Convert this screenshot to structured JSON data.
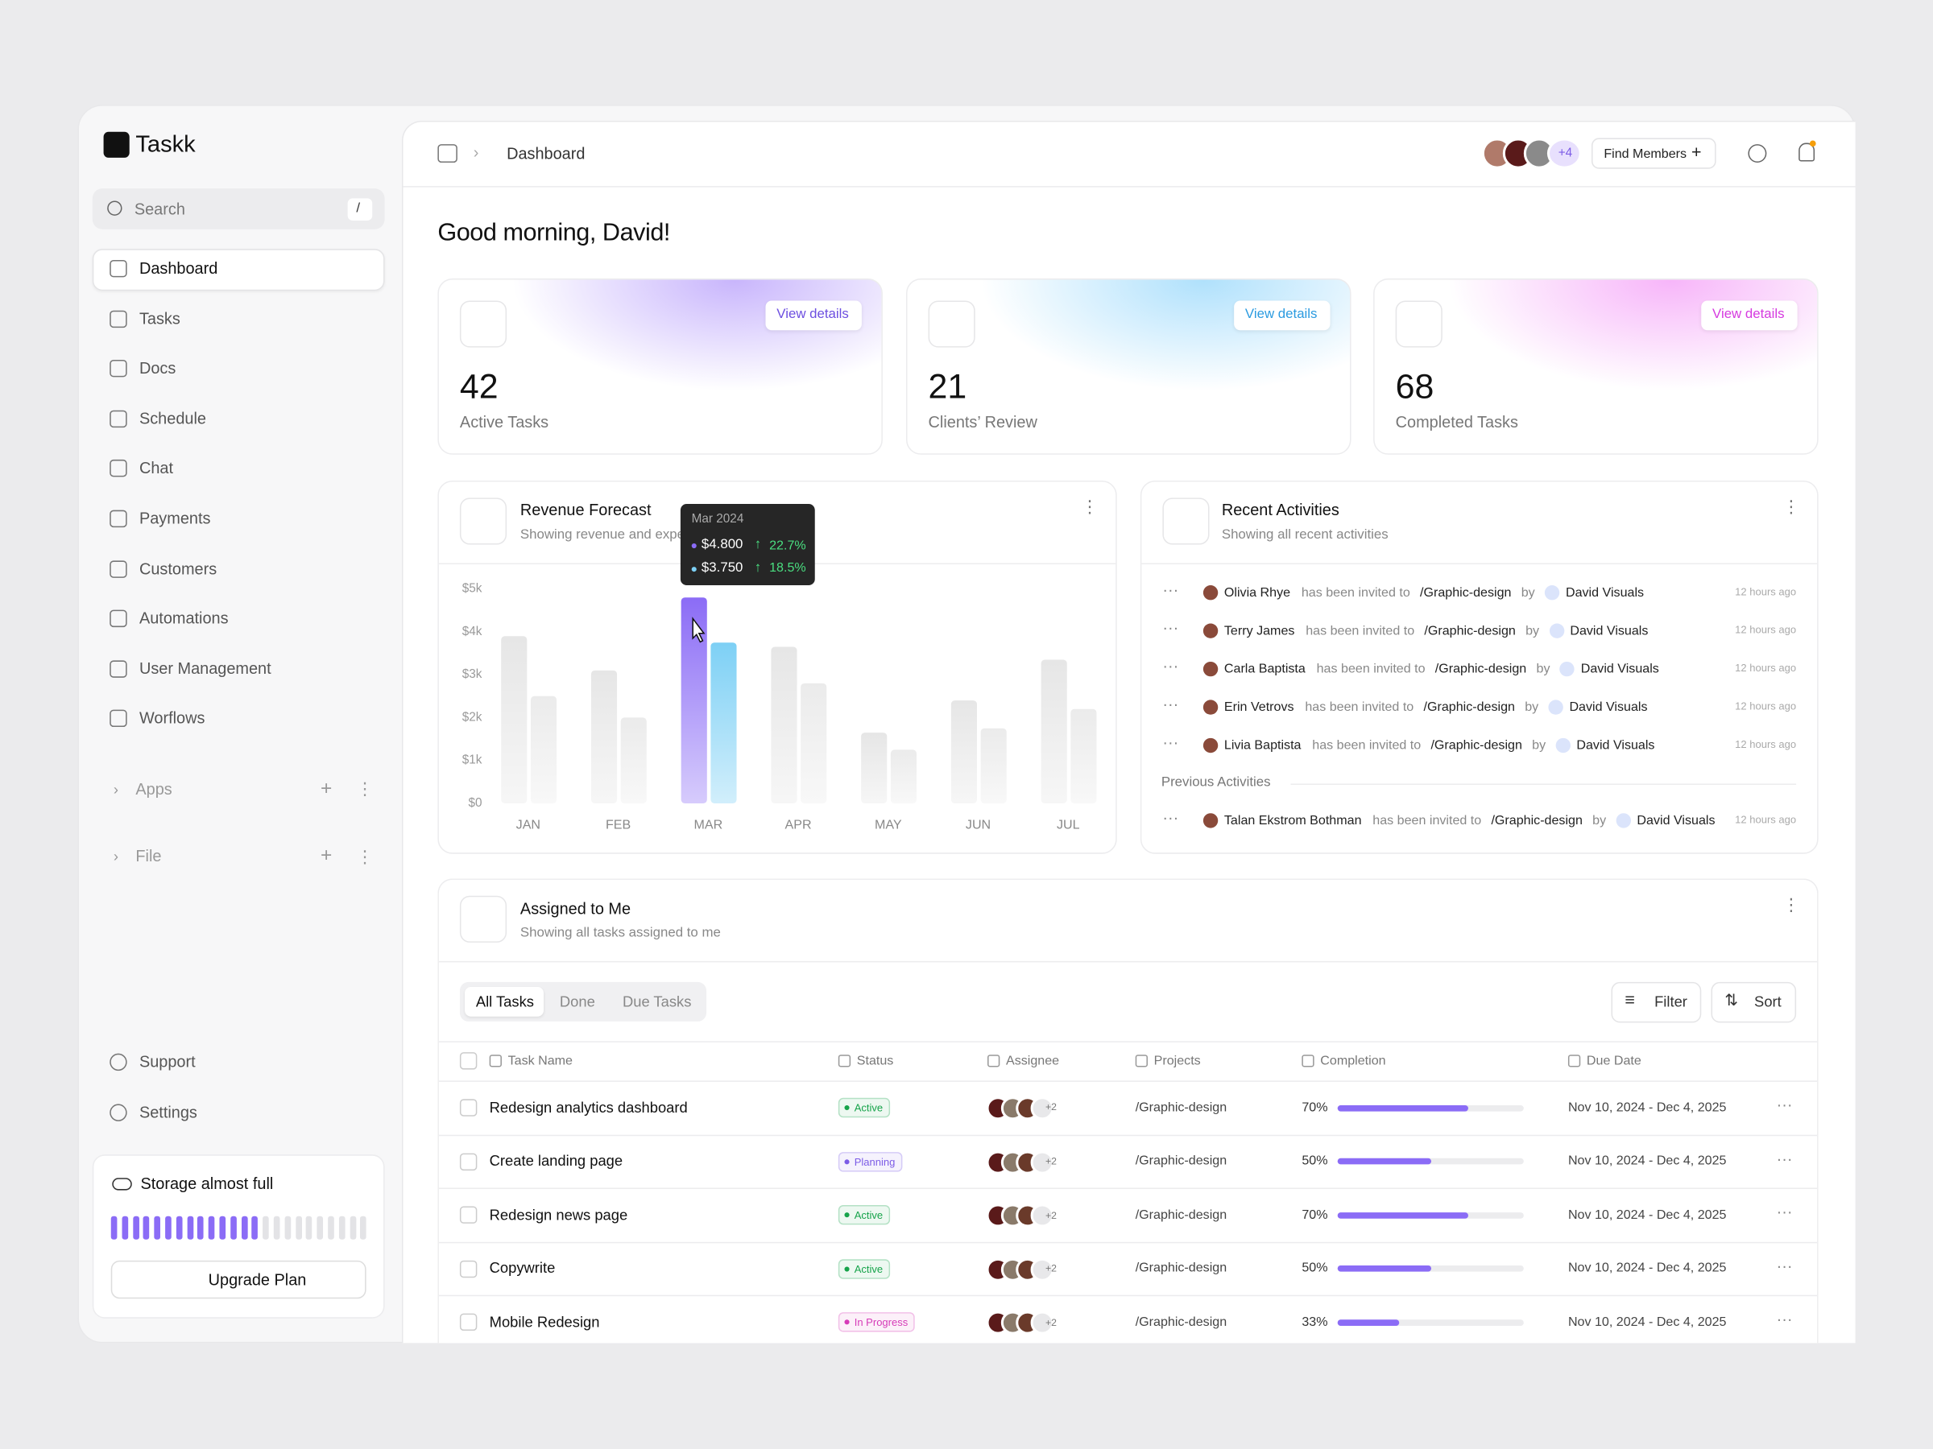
{
  "brand": "Taskk",
  "search": {
    "placeholder": "Search",
    "shortcut": "/"
  },
  "nav": [
    "Dashboard",
    "Tasks",
    "Docs",
    "Schedule",
    "Chat",
    "Payments",
    "Customers",
    "Automations",
    "User Management",
    "Worflows"
  ],
  "sections": [
    "Apps",
    "File"
  ],
  "footer_nav": [
    "Support",
    "Settings"
  ],
  "storage": {
    "title": "Storage almost full",
    "button": "Upgrade Plan"
  },
  "header": {
    "breadcrumb": "Dashboard",
    "members_more": "+4",
    "find_members": "Find Members"
  },
  "greeting": "Good morning, David!",
  "stats": [
    {
      "value": "42",
      "label": "Active Tasks",
      "link": "View details"
    },
    {
      "value": "21",
      "label": "Clients’ Review",
      "link": "View details"
    },
    {
      "value": "68",
      "label": "Completed Tasks",
      "link": "View details"
    }
  ],
  "revenue": {
    "title": "Revenue Forecast",
    "subtitle": "Showing revenue and exper",
    "chart_data": {
      "type": "bar",
      "categories": [
        "JAN",
        "FEB",
        "MAR",
        "APR",
        "MAY",
        "JUN",
        "JUL"
      ],
      "series": [
        {
          "color": "#8b6cf6",
          "colors": [
            "#e6e6e6",
            "#e6e6e6",
            "#8b6cf6",
            "#e6e6e6",
            "#e6e6e6",
            "#e6e6e6",
            "#e6e6e6"
          ],
          "values": [
            3900,
            3100,
            4800,
            3650,
            1650,
            2400,
            3350
          ]
        },
        {
          "color": "#7dd0f5",
          "colors": [
            "#ebebeb",
            "#ebebeb",
            "#7dd0f5",
            "#ebebeb",
            "#ebebeb",
            "#ebebeb",
            "#ebebeb"
          ],
          "values": [
            2500,
            2000,
            3750,
            2800,
            1250,
            1750,
            2200
          ]
        }
      ],
      "ylim": [
        0,
        5000
      ],
      "yticks": [
        {
          "value": 0,
          "label": "$0"
        },
        {
          "value": 1000,
          "label": "$1k"
        },
        {
          "value": 2000,
          "label": "$2k"
        },
        {
          "value": 3000,
          "label": "$3k"
        },
        {
          "value": 4000,
          "label": "$4k"
        },
        {
          "value": 5000,
          "label": "$5k"
        }
      ]
    },
    "tooltip": {
      "title": "Mar 2024",
      "rows": [
        {
          "value": "$4.800",
          "change": "22.7%",
          "color": "#8b6cf6"
        },
        {
          "value": "$3.750",
          "change": "18.5%",
          "color": "#7dd0f5"
        }
      ]
    }
  },
  "activities": {
    "title": "Recent Activities",
    "subtitle": "Showing all recent activities",
    "previous_label": "Previous Activities",
    "items": [
      {
        "name": "Olivia Rhye",
        "text": "has been invited to",
        "project": "/Graphic-design",
        "by": "by",
        "owner": "David Visuals",
        "time": "12 hours ago"
      },
      {
        "name": "Terry James",
        "text": "has been invited to",
        "project": "/Graphic-design",
        "by": "by",
        "owner": "David Visuals",
        "time": "12 hours ago"
      },
      {
        "name": "Carla Baptista",
        "text": "has been invited to",
        "project": "/Graphic-design",
        "by": "by",
        "owner": "David Visuals",
        "time": "12 hours ago"
      },
      {
        "name": "Erin Vetrovs",
        "text": "has been invited to",
        "project": "/Graphic-design",
        "by": "by",
        "owner": "David Visuals",
        "time": "12 hours ago"
      },
      {
        "name": "Livia Baptista",
        "text": "has been invited to",
        "project": "/Graphic-design",
        "by": "by",
        "owner": "David Visuals",
        "time": "12 hours ago"
      }
    ],
    "previous": [
      {
        "name": "Talan Ekstrom Bothman",
        "text": "has been invited to",
        "project": "/Graphic-design",
        "by": "by",
        "owner": "David Visuals",
        "time": "12 hours ago"
      }
    ]
  },
  "tasks": {
    "title": "Assigned to Me",
    "subtitle": "Showing all tasks assigned to me",
    "tabs": [
      "All Tasks",
      "Done",
      "Due Tasks"
    ],
    "filter": "Filter",
    "sort": "Sort",
    "columns": [
      "Task Name",
      "Status",
      "Assignee",
      "Projects",
      "Completion",
      "Due Date"
    ],
    "rows": [
      {
        "name": "Redesign analytics dashboard",
        "status": "Active",
        "status_color": "#16a34a",
        "assignee_more": "+2",
        "project": "/Graphic-design",
        "completion": {
          "value": 70,
          "label": "70%"
        },
        "due": "Nov 10, 2024 - Dec 4, 2025"
      },
      {
        "name": "Create landing page",
        "status": "Planning",
        "status_color": "#7c5ce6",
        "assignee_more": "+2",
        "project": "/Graphic-design",
        "completion": {
          "value": 50,
          "label": "50%"
        },
        "due": "Nov 10, 2024 - Dec 4, 2025"
      },
      {
        "name": "Redesign news page",
        "status": "Active",
        "status_color": "#16a34a",
        "assignee_more": "+2",
        "project": "/Graphic-design",
        "completion": {
          "value": 70,
          "label": "70%"
        },
        "due": "Nov 10, 2024 - Dec 4, 2025"
      },
      {
        "name": "Copywrite",
        "status": "Active",
        "status_color": "#16a34a",
        "assignee_more": "+2",
        "project": "/Graphic-design",
        "completion": {
          "value": 50,
          "label": "50%"
        },
        "due": "Nov 10, 2024 - Dec 4, 2025"
      },
      {
        "name": "Mobile Redesign",
        "status": "In Progress",
        "status_color": "#d63bb8",
        "assignee_more": "+2",
        "project": "/Graphic-design",
        "completion": {
          "value": 33,
          "label": "33%"
        },
        "due": "Nov 10, 2024 - Dec 4, 2025"
      }
    ]
  }
}
